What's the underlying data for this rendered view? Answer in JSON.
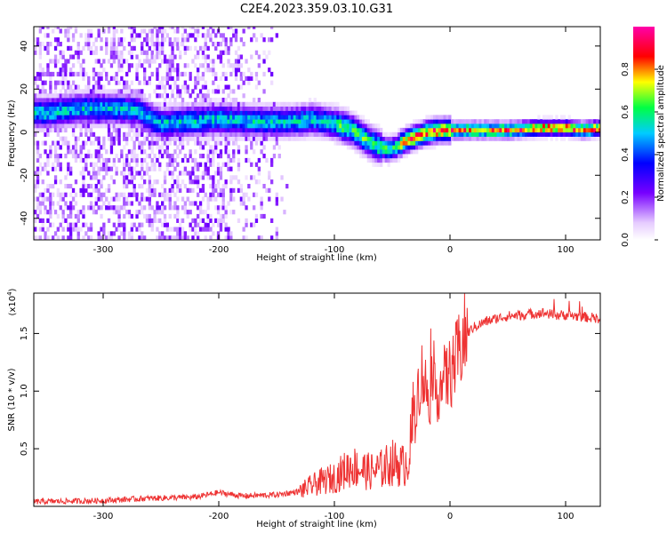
{
  "title": "C2E4.2023.359.03.10.G31",
  "colors": {
    "snr_line": "#ee3333",
    "frame": "#000000"
  },
  "chart_data": [
    {
      "type": "heatmap",
      "xlabel": "Height of straight line (km)",
      "ylabel": "Frequency (Hz)",
      "xlim": [
        -360,
        130
      ],
      "ylim": [
        -50,
        49
      ],
      "xticks": [
        -300,
        -200,
        -100,
        0,
        100
      ],
      "xtick_labels": [
        "-300",
        "-200",
        "-100",
        "0",
        "100"
      ],
      "yticks": [
        -40,
        -20,
        0,
        20,
        40
      ],
      "ytick_labels": [
        "-40",
        "-20",
        "0",
        "20",
        "40"
      ],
      "colorbar": {
        "label": "Normalized spectral amplitude",
        "range": [
          0,
          1
        ],
        "ticks": [
          0.0,
          0.2,
          0.4,
          0.6,
          0.8
        ],
        "tick_labels": [
          "0.0",
          "0.2",
          "0.4",
          "0.6",
          "0.8"
        ],
        "colormap": "rainbow (white-violet-blue-cyan-green-yellow-red-magenta)"
      },
      "ridge": {
        "description": "dominant frequency ridge",
        "x": [
          -350,
          -320,
          -290,
          -270,
          -260,
          -250,
          -230,
          -200,
          -170,
          -140,
          -120,
          -100,
          -85,
          -75,
          -65,
          -55,
          -48,
          -40,
          -30,
          -20,
          -10,
          0,
          20,
          50,
          80,
          100,
          115,
          130
        ],
        "y": [
          9,
          11,
          11,
          10,
          6,
          4,
          5,
          6,
          5,
          5,
          6,
          4,
          1,
          -3,
          -6,
          -8,
          -7,
          -4,
          -2,
          0,
          1,
          1,
          1,
          1,
          2,
          2,
          1,
          2
        ]
      }
    },
    {
      "type": "line",
      "xlabel": "Height of straight line (km)",
      "ylabel": "SNR (10 * v/v)",
      "ymultiplier_label": "(x10",
      "ymultiplier_exp": "4",
      "xlim": [
        -360,
        130
      ],
      "ylim": [
        0,
        18500
      ],
      "xticks": [
        -300,
        -200,
        -100,
        0,
        100
      ],
      "xtick_labels": [
        "-300",
        "-200",
        "-100",
        "0",
        "100"
      ],
      "yticks": [
        5000,
        10000,
        15000
      ],
      "ytick_labels": [
        "0.5",
        "1.0",
        "1.5"
      ],
      "series": [
        {
          "x": [
            -360,
            -300,
            -260,
            -220,
            -200,
            -180,
            -150,
            -130,
            -115,
            -100,
            -85,
            -70,
            -60,
            -50,
            -40,
            -35,
            -30,
            -27,
            -24,
            -20,
            -15,
            -10,
            -5,
            0,
            5,
            10,
            15,
            20,
            30,
            40,
            50,
            60,
            70,
            80,
            90,
            100,
            110,
            120,
            130
          ],
          "y": [
            400,
            500,
            700,
            800,
            1200,
            900,
            1000,
            1300,
            2000,
            2500,
            3500,
            3000,
            3200,
            3800,
            3500,
            4500,
            9000,
            10500,
            11500,
            10000,
            9500,
            10200,
            11000,
            11500,
            12500,
            14000,
            15000,
            15500,
            16000,
            16300,
            16500,
            16600,
            16700,
            16800,
            16600,
            16600,
            16500,
            16400,
            16300
          ]
        }
      ]
    }
  ]
}
